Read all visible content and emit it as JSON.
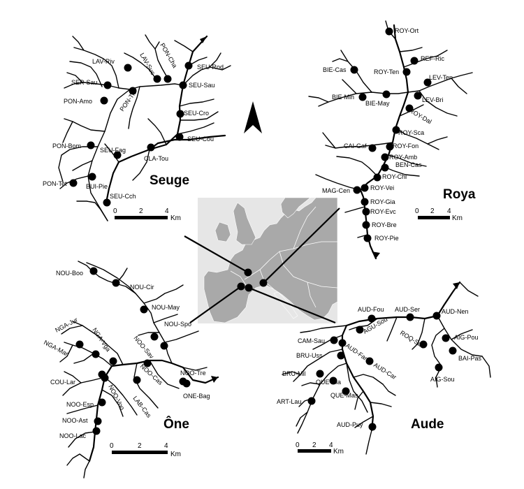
{
  "basins": {
    "seuge": {
      "title": "Seuge",
      "sites": [
        "SEU-Rod",
        "SEU-Sau",
        "SEU-Cro",
        "SEU-Cou",
        "LAV-Riv",
        "LAV-Suc",
        "PON-Cha",
        "SER-Sau",
        "PON-Tis",
        "PON-Amo",
        "PON-Bom",
        "SEU-Fag",
        "CLA-Tou",
        "PON-Tet",
        "BUI-Pie",
        "SEU-Cch"
      ],
      "scale": {
        "ticks": [
          "0",
          "2",
          "4"
        ],
        "unit": "Km"
      }
    },
    "roya": {
      "title": "Roya",
      "sites": [
        "ROY-Ort",
        "REF-Ric",
        "BIE-Cas",
        "ROY-Ten",
        "LEV-Ten",
        "BIE-Min",
        "LEV-Bri",
        "BIE-May",
        "ROY-Dal",
        "ROY-Sca",
        "ROY-Fon",
        "CAI-Gaf",
        "ROY-Amb",
        "BEN-Cas",
        "ROY-Chi",
        "MAG-Cen",
        "ROY-Vei",
        "ROY-Gia",
        "ROY-Evc",
        "ROY-Bre",
        "ROY-Pie"
      ],
      "scale": {
        "ticks": [
          "0",
          "2",
          "4"
        ],
        "unit": "Km"
      }
    },
    "one": {
      "title": "Ône",
      "sites": [
        "NOU-Boo",
        "NOU-Cir",
        "NOU-May",
        "NOU-Spo",
        "NGA-Jur",
        "NGA-Vga",
        "NGA-Mar",
        "NOO-Sav",
        "NOO-Tre",
        "COU-Lar",
        "NOO-Cas",
        "NOO-Voo",
        "ONE-Bag",
        "LAB-Cas",
        "NOO-Esp",
        "NOO-Ast",
        "NOO-Lac"
      ],
      "scale": {
        "ticks": [
          "0",
          "2",
          "4"
        ],
        "unit": "Km"
      }
    },
    "aude": {
      "title": "Aude",
      "sites": [
        "AUD-Fou",
        "AUD-Ser",
        "AUD-Nen",
        "CAM-Sau",
        "AGU-Sou",
        "ROQ-Sau",
        "AIG-Pou",
        "AUD-Far",
        "BRU-Uss",
        "BAI-Pas",
        "BRU-Mil",
        "AUD-Car",
        "QUE-Ria",
        "AIG-Sou",
        "QUE-Mas",
        "ART-Lau",
        "AUD-Puy"
      ],
      "scale": {
        "ticks": [
          "0",
          "2",
          "4"
        ],
        "unit": "Km"
      }
    }
  },
  "legend": {
    "north_arrow": "north-arrow-icon"
  },
  "colors": {
    "land": "#aaaaaa",
    "sea": "#e6e6e6",
    "border": "#ffffff",
    "ink": "#000000"
  }
}
